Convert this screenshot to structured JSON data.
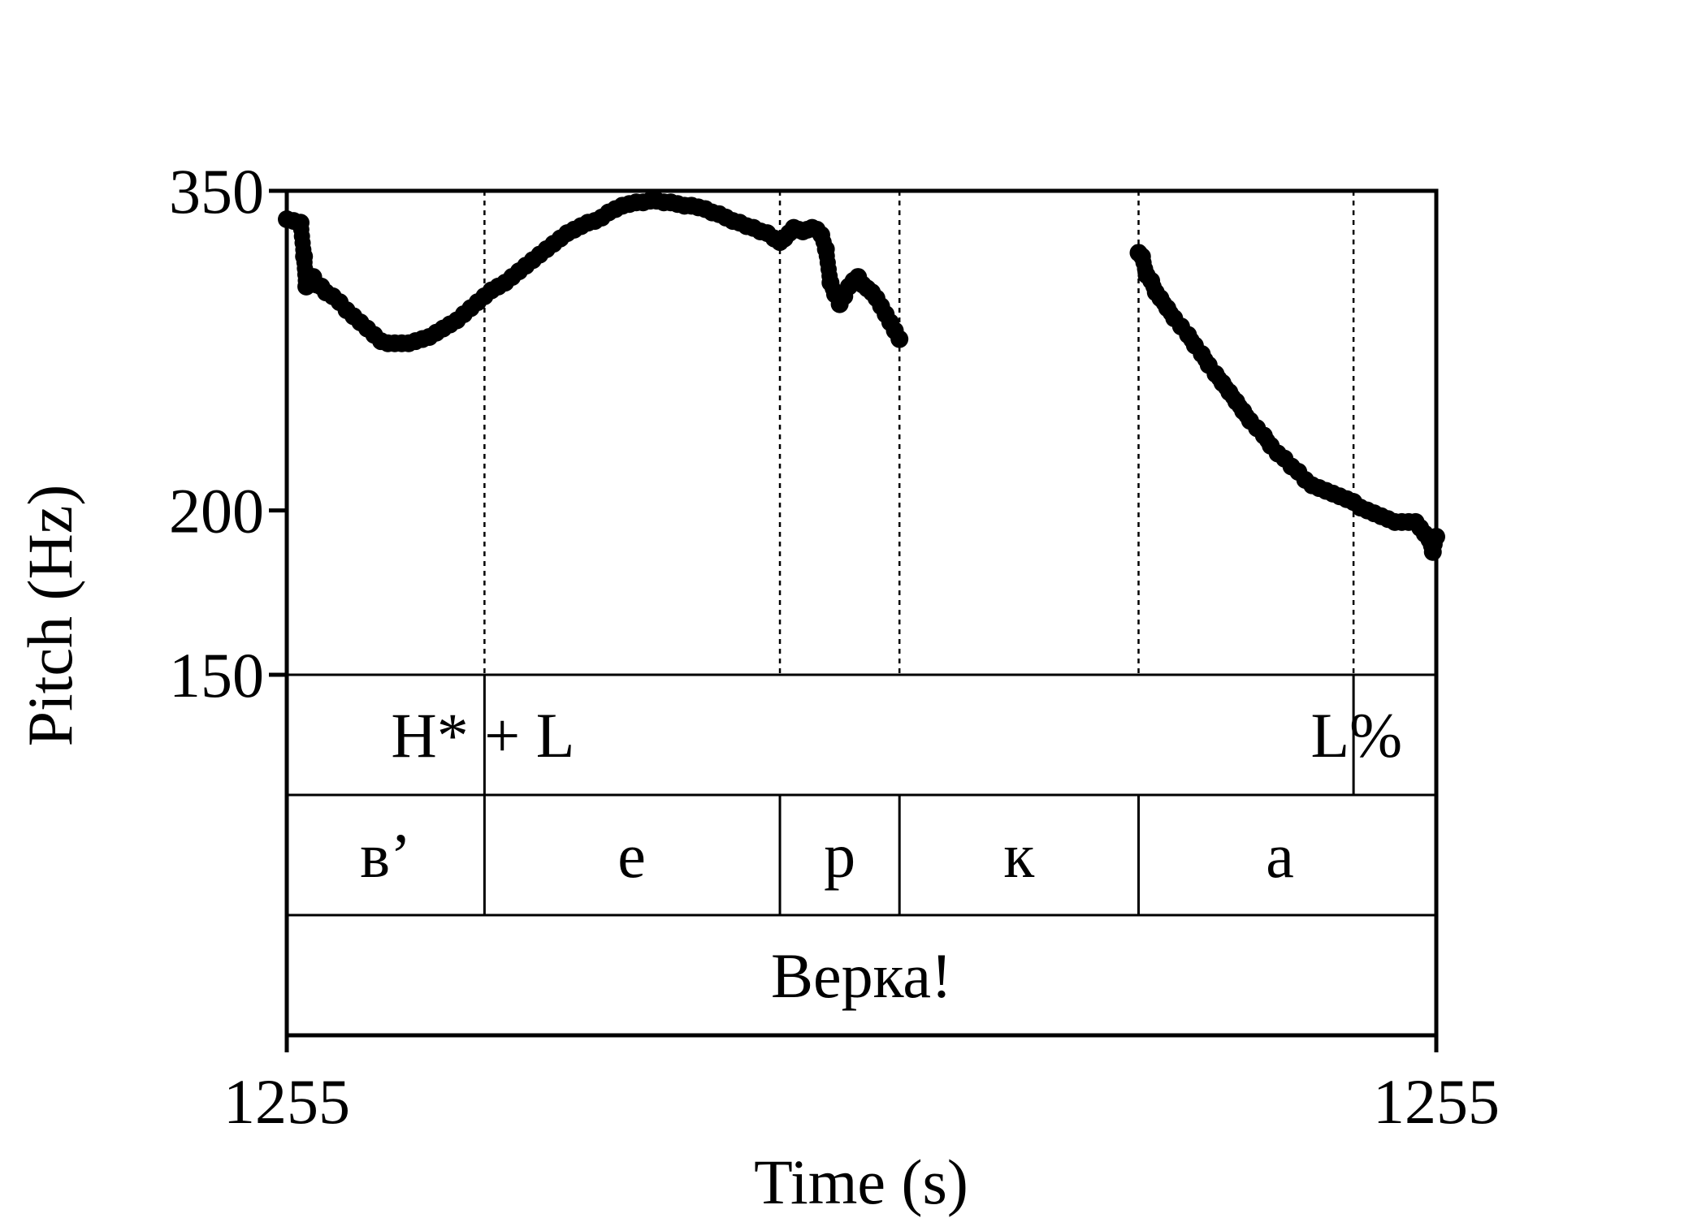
{
  "chart_data": {
    "type": "scatter",
    "title": "",
    "xlabel": "Time (s)",
    "ylabel": "Pitch (Hz)",
    "x_tick_labels": [
      "1255",
      "1255"
    ],
    "y_ticks": [
      150,
      200,
      350
    ],
    "y_tick_labels": [
      "150",
      "200",
      "350"
    ],
    "ylim": [
      150,
      350
    ],
    "xlim": [
      0,
      1
    ],
    "y_scale": "log",
    "grid": false,
    "legend": "none",
    "point_color": "#000000",
    "boundaries": [
      0.172,
      0.429,
      0.533,
      0.741,
      0.928
    ],
    "series": [
      {
        "segments": [
          [
            [
              0.0,
              333
            ],
            [
              0.006,
              332
            ],
            [
              0.012,
              331
            ],
            [
              0.015,
              312
            ],
            [
              0.017,
              296
            ],
            [
              0.02,
              300
            ],
            [
              0.023,
              301
            ],
            [
              0.026,
              297
            ],
            [
              0.03,
              296
            ],
            [
              0.034,
              293
            ],
            [
              0.04,
              291
            ],
            [
              0.046,
              288
            ],
            [
              0.052,
              284
            ],
            [
              0.058,
              281
            ],
            [
              0.064,
              278
            ],
            [
              0.07,
              275
            ],
            [
              0.076,
              272
            ],
            [
              0.082,
              269
            ],
            [
              0.088,
              268
            ],
            [
              0.094,
              268
            ],
            [
              0.1,
              268
            ],
            [
              0.106,
              268
            ],
            [
              0.112,
              269
            ],
            [
              0.118,
              270
            ],
            [
              0.124,
              271
            ],
            [
              0.13,
              273
            ],
            [
              0.136,
              275
            ],
            [
              0.142,
              277
            ],
            [
              0.148,
              279
            ],
            [
              0.154,
              282
            ],
            [
              0.16,
              285
            ],
            [
              0.166,
              288
            ],
            [
              0.172,
              291
            ],
            [
              0.178,
              294
            ],
            [
              0.184,
              296
            ],
            [
              0.19,
              298
            ],
            [
              0.196,
              301
            ],
            [
              0.202,
              304
            ],
            [
              0.208,
              307
            ],
            [
              0.214,
              310
            ],
            [
              0.22,
              313
            ],
            [
              0.226,
              316
            ],
            [
              0.232,
              319
            ],
            [
              0.238,
              322
            ],
            [
              0.244,
              325
            ],
            [
              0.25,
              327
            ],
            [
              0.256,
              329
            ],
            [
              0.262,
              331
            ],
            [
              0.268,
              332
            ],
            [
              0.274,
              334
            ],
            [
              0.28,
              337
            ],
            [
              0.286,
              339
            ],
            [
              0.292,
              341
            ],
            [
              0.298,
              342
            ],
            [
              0.304,
              343
            ],
            [
              0.31,
              343
            ],
            [
              0.316,
              344
            ],
            [
              0.322,
              344
            ],
            [
              0.328,
              343
            ],
            [
              0.334,
              343
            ],
            [
              0.34,
              342
            ],
            [
              0.346,
              341
            ],
            [
              0.352,
              341
            ],
            [
              0.358,
              340
            ],
            [
              0.364,
              339
            ],
            [
              0.37,
              337
            ],
            [
              0.376,
              336
            ],
            [
              0.382,
              334
            ],
            [
              0.388,
              332
            ],
            [
              0.394,
              331
            ],
            [
              0.4,
              329
            ],
            [
              0.406,
              328
            ],
            [
              0.412,
              326
            ],
            [
              0.418,
              325
            ],
            [
              0.424,
              322
            ],
            [
              0.429,
              320
            ],
            [
              0.433,
              322
            ],
            [
              0.437,
              325
            ],
            [
              0.441,
              328
            ],
            [
              0.445,
              327
            ],
            [
              0.449,
              326
            ],
            [
              0.453,
              327
            ],
            [
              0.457,
              328
            ],
            [
              0.461,
              327
            ],
            [
              0.465,
              324
            ],
            [
              0.469,
              316
            ],
            [
              0.473,
              298
            ],
            [
              0.477,
              292
            ],
            [
              0.481,
              287
            ],
            [
              0.485,
              291
            ],
            [
              0.489,
              296
            ],
            [
              0.493,
              299
            ],
            [
              0.497,
              301
            ],
            [
              0.501,
              297
            ],
            [
              0.505,
              295
            ],
            [
              0.509,
              293
            ],
            [
              0.513,
              290
            ],
            [
              0.517,
              286
            ],
            [
              0.521,
              282
            ],
            [
              0.525,
              278
            ],
            [
              0.529,
              274
            ],
            [
              0.533,
              270
            ]
          ],
          [
            [
              0.741,
              314
            ],
            [
              0.744,
              312
            ],
            [
              0.748,
              302
            ],
            [
              0.752,
              299
            ],
            [
              0.756,
              293
            ],
            [
              0.76,
              290
            ],
            [
              0.766,
              285
            ],
            [
              0.772,
              280
            ],
            [
              0.778,
              276
            ],
            [
              0.784,
              272
            ],
            [
              0.79,
              267
            ],
            [
              0.796,
              263
            ],
            [
              0.802,
              258
            ],
            [
              0.808,
              254
            ],
            [
              0.814,
              250
            ],
            [
              0.82,
              246
            ],
            [
              0.826,
              242
            ],
            [
              0.832,
              238
            ],
            [
              0.838,
              234
            ],
            [
              0.844,
              231
            ],
            [
              0.85,
              228
            ],
            [
              0.856,
              224
            ],
            [
              0.862,
              221
            ],
            [
              0.868,
              219
            ],
            [
              0.874,
              216
            ],
            [
              0.88,
              214
            ],
            [
              0.886,
              211
            ],
            [
              0.892,
              209
            ],
            [
              0.898,
              208
            ],
            [
              0.904,
              207
            ],
            [
              0.91,
              206
            ],
            [
              0.916,
              205
            ],
            [
              0.922,
              204
            ],
            [
              0.928,
              203
            ],
            [
              0.934,
              201
            ],
            [
              0.94,
              200
            ],
            [
              0.946,
              199
            ],
            [
              0.952,
              198
            ],
            [
              0.958,
              197
            ],
            [
              0.964,
              196
            ],
            [
              0.97,
              196
            ],
            [
              0.976,
              196
            ],
            [
              0.982,
              196
            ],
            [
              0.986,
              194
            ],
            [
              0.99,
              192
            ],
            [
              0.994,
              190
            ],
            [
              0.997,
              186
            ],
            [
              1.0,
              191
            ]
          ]
        ]
      }
    ],
    "tiers": [
      {
        "labels": [
          {
            "text": "H* + L",
            "x": 0.172
          },
          {
            "text": "L%",
            "x": 0.928
          }
        ],
        "marks": [
          0.172,
          0.928
        ]
      },
      {
        "labels": [
          {
            "text": "в’",
            "x": 0.086
          },
          {
            "text": "е",
            "x": 0.3
          },
          {
            "text": "р",
            "x": 0.481
          },
          {
            "text": "к",
            "x": 0.637
          },
          {
            "text": "а",
            "x": 0.864
          }
        ],
        "marks": [
          0.172,
          0.429,
          0.533,
          0.741
        ]
      },
      {
        "labels": [
          {
            "text": "Верка!",
            "x": 0.5
          }
        ],
        "marks": []
      }
    ]
  }
}
